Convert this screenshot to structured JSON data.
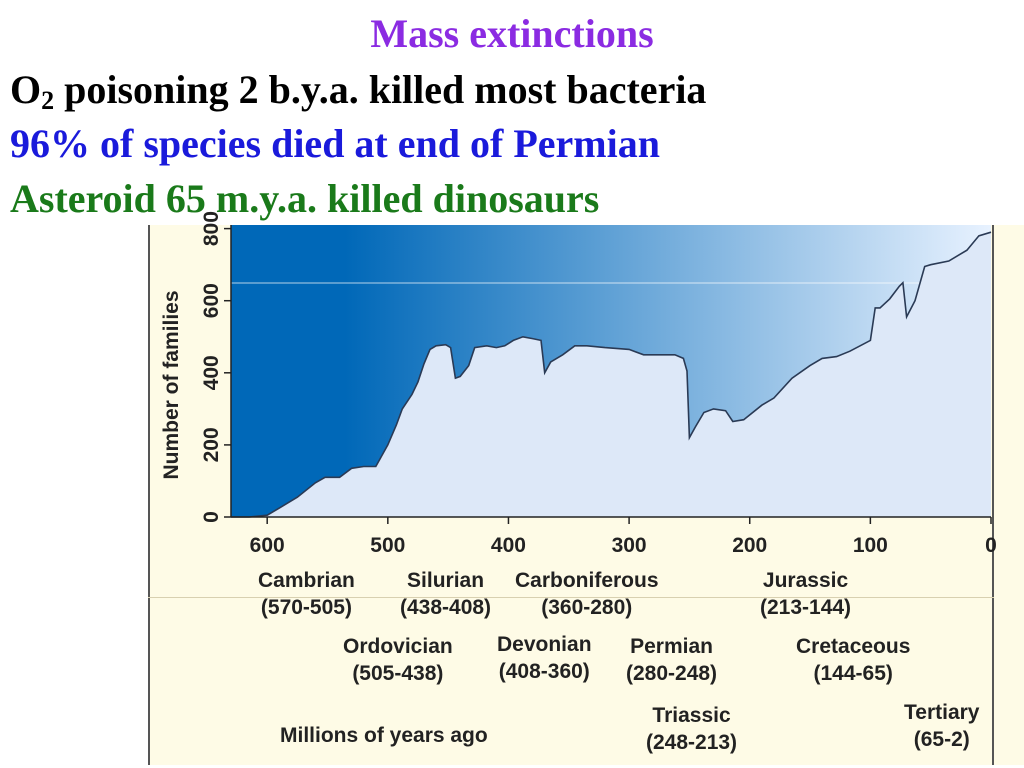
{
  "slide": {
    "title": "Mass extinctions",
    "line1_prefix": "O",
    "line1_sub": "2",
    "line1_rest": " poisoning 2 b.y.a. killed most bacteria",
    "line2": "96% of species died at end of Permian",
    "line3": "Asteroid 65 m.y.a. killed dinosaurs",
    "colors": {
      "title": "#8b2be2",
      "line1": "#000000",
      "line2": "#1a1adb",
      "line3": "#1a7a1a"
    }
  },
  "chart_data": {
    "type": "area",
    "title": "",
    "xlabel": "Millions of years ago",
    "ylabel": "Number of families",
    "xlim": [
      630,
      0
    ],
    "ylim": [
      0,
      810
    ],
    "x_ticks": [
      600,
      500,
      400,
      300,
      200,
      100,
      0
    ],
    "y_ticks": [
      0,
      200,
      400,
      600,
      800
    ],
    "grid": false,
    "fill_color": "#dde8f8",
    "background_gradient": [
      "#0068b8",
      "#e8f2ff"
    ],
    "series": [
      {
        "x": [
          630,
          615,
          600,
          590,
          580,
          575,
          560,
          552,
          540,
          530,
          520,
          510,
          500,
          493,
          488,
          480,
          475,
          470,
          465,
          460,
          452,
          448,
          444,
          440,
          433,
          428,
          418,
          410,
          403,
          396,
          388,
          380,
          373,
          370,
          365,
          355,
          345,
          335,
          320,
          300,
          288,
          270,
          262,
          255,
          252,
          250,
          245,
          238,
          230,
          220,
          214,
          205,
          190,
          180,
          165,
          150,
          140,
          128,
          117,
          100,
          96,
          92,
          84,
          76,
          73,
          70,
          63,
          55,
          50,
          35,
          20,
          10,
          0
        ],
        "y": [
          0,
          0,
          5,
          25,
          45,
          55,
          95,
          110,
          110,
          135,
          140,
          140,
          200,
          255,
          300,
          340,
          375,
          425,
          465,
          475,
          478,
          470,
          385,
          390,
          420,
          470,
          475,
          470,
          475,
          490,
          500,
          495,
          490,
          400,
          430,
          450,
          475,
          475,
          470,
          465,
          450,
          450,
          450,
          440,
          405,
          220,
          250,
          290,
          300,
          295,
          265,
          270,
          310,
          330,
          385,
          420,
          440,
          445,
          460,
          490,
          580,
          580,
          605,
          640,
          650,
          555,
          600,
          695,
          700,
          710,
          740,
          780,
          790
        ]
      }
    ],
    "periods": [
      {
        "name": "Cambrian",
        "range": "(570-505)"
      },
      {
        "name": "Silurian",
        "range": "(438-408)"
      },
      {
        "name": "Carboniferous",
        "range": "(360-280)"
      },
      {
        "name": "Jurassic",
        "range": "(213-144)"
      },
      {
        "name": "Ordovician",
        "range": "(505-438)"
      },
      {
        "name": "Devonian",
        "range": "(408-360)"
      },
      {
        "name": "Permian",
        "range": "(280-248)"
      },
      {
        "name": "Cretaceous",
        "range": "(144-65)"
      },
      {
        "name": "Triassic",
        "range": "(248-213)"
      },
      {
        "name": "Tertiary",
        "range": "(65-2)"
      }
    ]
  }
}
